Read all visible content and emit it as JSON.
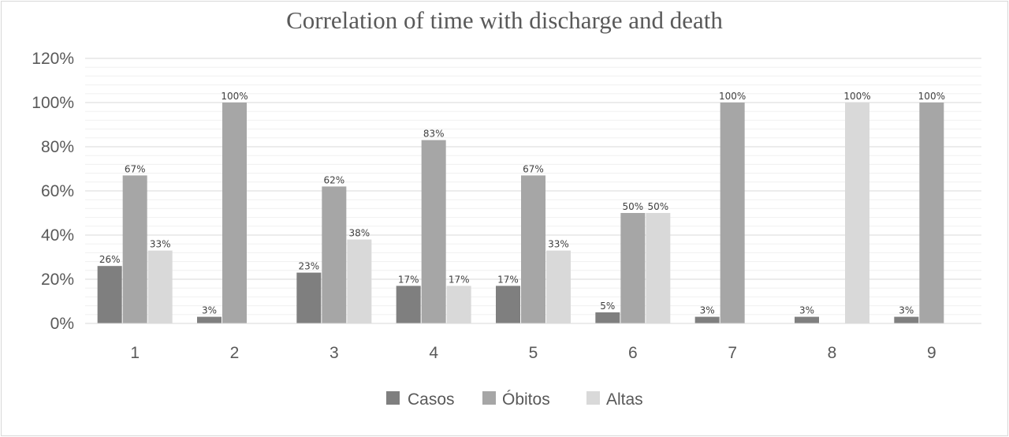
{
  "chart_data": {
    "type": "bar",
    "title": "Correlation of time with discharge and death",
    "categories": [
      "1",
      "2",
      "3",
      "4",
      "5",
      "6",
      "7",
      "8",
      "9"
    ],
    "series": [
      {
        "name": "Casos",
        "values": [
          26,
          3,
          23,
          17,
          17,
          5,
          3,
          3,
          3
        ],
        "labels": [
          "26%",
          "3%",
          "23%",
          "17%",
          "17%",
          "5%",
          "3%",
          "3%",
          "3%"
        ],
        "color": "#7f7f7f"
      },
      {
        "name": "Óbitos",
        "values": [
          67,
          100,
          62,
          83,
          67,
          50,
          100,
          0,
          100
        ],
        "labels": [
          "67%",
          "100%",
          "62%",
          "83%",
          "67%",
          "50%",
          "100%",
          null,
          "100%"
        ],
        "color": "#a6a6a6"
      },
      {
        "name": "Altas",
        "values": [
          33,
          0,
          38,
          17,
          33,
          50,
          0,
          100,
          0
        ],
        "labels": [
          "33%",
          null,
          "38%",
          "17%",
          "33%",
          "50%",
          null,
          "100%",
          null
        ],
        "color": "#d9d9d9"
      }
    ],
    "yticks": [
      "0%",
      "20%",
      "40%",
      "60%",
      "80%",
      "100%",
      "120%"
    ],
    "ylim": [
      0,
      120
    ],
    "xlabel": "",
    "ylabel": "",
    "grid": true,
    "legend": "bottom"
  }
}
